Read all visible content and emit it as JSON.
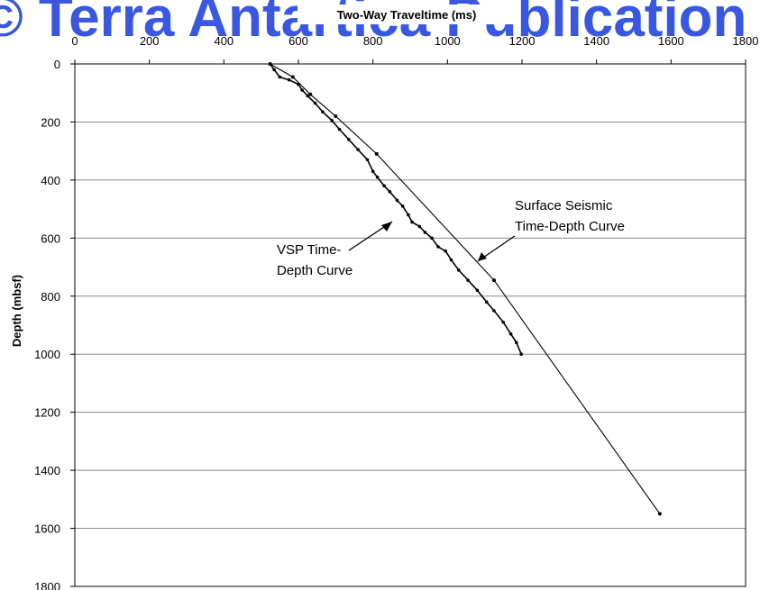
{
  "watermark": "© Terra Antartica Publication",
  "chart_data": {
    "type": "line",
    "xlabel": "Two-Way Traveltime (ms)",
    "ylabel": "Depth (mbsf)",
    "xlim": [
      0,
      1800
    ],
    "ylim": [
      0,
      1800
    ],
    "y_inverted": true,
    "x_axis_position": "top",
    "xticks": [
      0,
      200,
      400,
      600,
      800,
      1000,
      1200,
      1400,
      1600,
      1800
    ],
    "yticks": [
      0,
      200,
      400,
      600,
      800,
      1000,
      1200,
      1400,
      1600,
      1800
    ],
    "grid": "horizontal",
    "series": [
      {
        "name": "Surface Seismic Time-Depth Curve",
        "color": "#000000",
        "points": [
          [
            524,
            0
          ],
          [
            585,
            45
          ],
          [
            632,
            105
          ],
          [
            700,
            180
          ],
          [
            810,
            310
          ],
          [
            1125,
            745
          ],
          [
            1570,
            1550
          ]
        ]
      },
      {
        "name": "VSP Time-Depth Curve",
        "color": "#000000",
        "points": [
          [
            524,
            0
          ],
          [
            535,
            20
          ],
          [
            550,
            45
          ],
          [
            575,
            55
          ],
          [
            600,
            70
          ],
          [
            610,
            90
          ],
          [
            625,
            110
          ],
          [
            645,
            135
          ],
          [
            665,
            165
          ],
          [
            690,
            195
          ],
          [
            710,
            225
          ],
          [
            735,
            260
          ],
          [
            760,
            295
          ],
          [
            785,
            330
          ],
          [
            800,
            370
          ],
          [
            812,
            390
          ],
          [
            830,
            420
          ],
          [
            845,
            440
          ],
          [
            865,
            470
          ],
          [
            880,
            490
          ],
          [
            895,
            520
          ],
          [
            905,
            545
          ],
          [
            925,
            560
          ],
          [
            940,
            580
          ],
          [
            958,
            600
          ],
          [
            975,
            630
          ],
          [
            995,
            645
          ],
          [
            1010,
            675
          ],
          [
            1030,
            710
          ],
          [
            1055,
            745
          ],
          [
            1080,
            780
          ],
          [
            1105,
            820
          ],
          [
            1125,
            850
          ],
          [
            1150,
            890
          ],
          [
            1170,
            930
          ],
          [
            1185,
            960
          ],
          [
            1198,
            1000
          ]
        ]
      }
    ],
    "annotations": [
      {
        "lines": [
          "Surface Seismic",
          "Time-Depth Curve"
        ]
      },
      {
        "lines": [
          "VSP Time-",
          "Depth Curve"
        ]
      }
    ]
  }
}
